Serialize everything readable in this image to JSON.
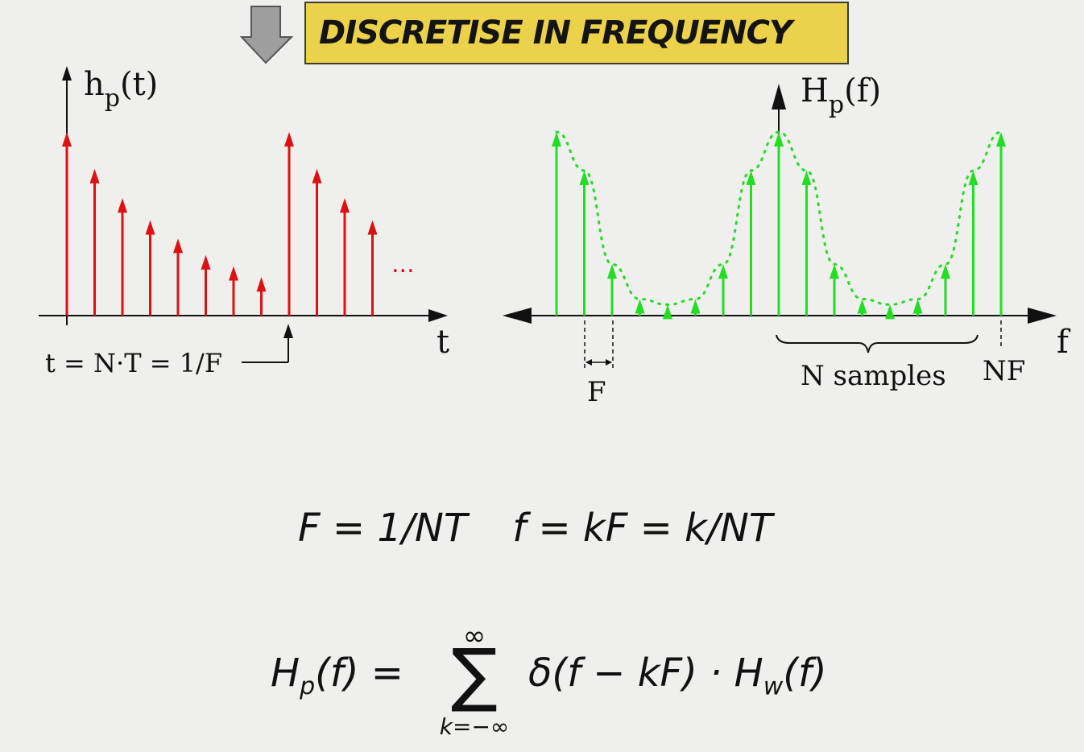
{
  "banner": {
    "text": "DISCRETISE IN FREQUENCY"
  },
  "left_plot": {
    "y_label_main": "h",
    "y_label_sub": "p",
    "y_label_arg": "(t)",
    "x_label": "t",
    "ellipsis": "...",
    "period_label": "t = N·T  = 1/F",
    "impulse_heights": [
      1.0,
      0.8,
      0.64,
      0.52,
      0.42,
      0.33,
      0.27,
      0.21,
      1.0,
      0.8,
      0.64,
      0.52
    ],
    "color": "#dd1111"
  },
  "right_plot": {
    "y_label_main": "H",
    "y_label_sub": "p",
    "y_label_arg": "(f)",
    "x_label": "f",
    "spacing_label": "F",
    "brace_label": "N samples",
    "nf_label": "NF",
    "impulse_heights": [
      1.0,
      0.79,
      0.28,
      0.09,
      0.06,
      0.09,
      0.28,
      0.79,
      1.0,
      0.79,
      0.28,
      0.09,
      0.06,
      0.09,
      0.28,
      0.79,
      1.0
    ],
    "color": "#22dd22"
  },
  "equations": {
    "eq1_left": "F = 1/NT",
    "eq1_right": "f = kF = k/NT",
    "eq2_lhs": "Hₚ(f) =",
    "sum_top": "∞",
    "sum_sign": "∑",
    "sum_bottom": "k=−∞",
    "eq2_rhs": "δ(f − kF) · Hᵥᵥ(f)"
  },
  "colors": {
    "banner": "#ecd24a",
    "time_impulses": "#dd1111",
    "freq_impulses": "#22dd22",
    "background": "#efefed"
  }
}
